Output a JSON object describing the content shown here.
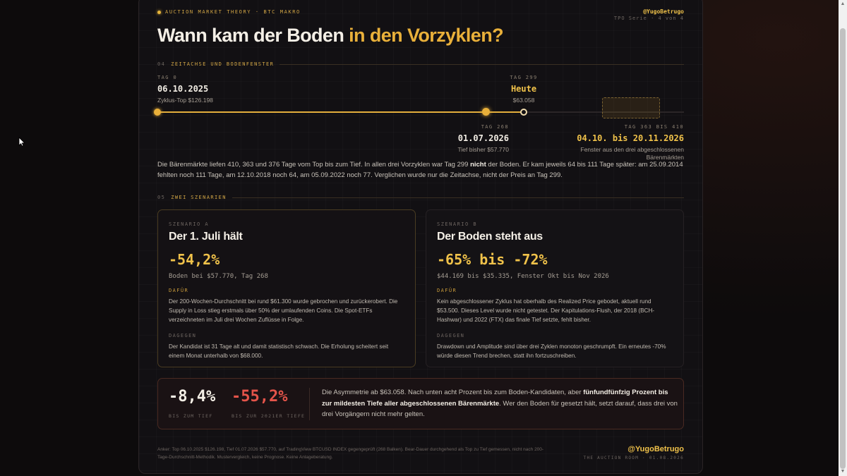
{
  "kicker": "AUCTION MARKET THEORY · BTC MAKRO",
  "handle": "@YugoBetrugo",
  "series": "TPO Serie · 4 von 4",
  "title": {
    "main": "Wann kam der Boden",
    "highlight": "in den Vorzyklen?"
  },
  "section4": {
    "num": "04",
    "label": "ZEITACHSE UND BODENFENSTER"
  },
  "timeline": {
    "start": {
      "tag": "TAG 0",
      "date": "06.10.2025",
      "sub": "Zyklus-Top $126.198"
    },
    "today": {
      "tag": "TAG 299",
      "date": "Heute",
      "sub": "$63.058"
    },
    "candidate": {
      "tag": "TAG 268",
      "date": "01.07.2026",
      "sub": "Tief bisher $57.770"
    },
    "window": {
      "tag": "TAG 363 BIS 410",
      "date": "04.10. bis 20.11.2026",
      "sub": "Fenster aus den drei abgeschlossenen Bärenmärkten"
    },
    "progress_fraction": 0.696
  },
  "para": {
    "p1": "Die Bärenmärkte liefen 410, 363 und 376 Tage vom Top bis zum Tief. In allen drei Vorzyklen war Tag 299 ",
    "bold": "nicht",
    "p2": " der Boden. Er kam jeweils 64 bis 111 Tage später: am 25.09.2014 fehlten noch 111 Tage, am 12.10.2018 noch 64, am 05.09.2022 noch 77. Verglichen wurde nur die Zeitachse, nicht der Preis an Tag 299."
  },
  "section5": {
    "num": "05",
    "label": "ZWEI SZENARIEN"
  },
  "scenario_a": {
    "tag": "SZENARIO A",
    "heading": "Der 1. Juli hält",
    "big": "-54,2%",
    "sub": "Boden bei $57.770, Tag 268",
    "pro_label": "DAFÜR",
    "pro": "Der 200-Wochen-Durchschnitt bei rund $61.300 wurde gebrochen und zurückerobert. Die Supply in Loss stieg erstmals über 50% der umlaufenden Coins. Die Spot-ETFs verzeichneten im Juli drei Wochen Zuflüsse in Folge.",
    "con_label": "DAGEGEN",
    "con": "Der Kandidat ist 31 Tage alt und damit statistisch schwach. Die Erholung scheitert seit einem Monat unterhalb von $68.000."
  },
  "scenario_b": {
    "tag": "SZENARIO B",
    "heading": "Der Boden steht aus",
    "big": "-65% bis -72%",
    "sub": "$44.169 bis $35.335, Fenster Okt bis Nov 2026",
    "pro_label": "DAFÜR",
    "pro": "Kein abgeschlossener Zyklus hat oberhalb des Realized Price gebodet, aktuell rund $53.500. Dieses Level wurde nicht getestet. Der Kapitulations-Flush, der 2018 (BCH-Hashwar) und 2022 (FTX) das finale Tief setzte, fehlt bisher.",
    "con_label": "DAGEGEN",
    "con": "Drawdown und Amplitude sind über drei Zyklen monoton geschrumpft. Ein erneutes -70% würde diesen Trend brechen, statt ihn fortzuschreiben."
  },
  "asymmetry": {
    "n1": "-8,4%",
    "l1": "BIS ZUM TIEF",
    "n2": "-55,2%",
    "l2": "BIS ZUR 2021ER TIEFE",
    "t1": "Die Asymmetrie ab $63.058. Nach unten acht Prozent bis zum Boden-Kandidaten, aber ",
    "bold": "fünfundfünfzig Prozent bis zur mildesten Tiefe aller abgeschlossenen Bärenmärkte",
    "t2": ". Wer den Boden für gesetzt hält, setzt darauf, dass drei von drei Vorgängern nicht mehr gelten."
  },
  "footer": {
    "note": "Anker: Top 06.10.2025 $126.198, Tief 01.07.2026 $57.770, auf TradingView BTCUSD INDEX gegengeprüft (268 Balken). Bear-Dauer durchgehend als Top zu Tief gemessen, nicht nach 200-Tage-Durchschnitt-Methodik. Mustervergleich, keine Prognose. Keine Anlageberatung.",
    "handle": "@YugoBetrugo",
    "sub": "THE AUCTION ROOM · 01.08.2026"
  },
  "colors": {
    "accent": "#e9b03a",
    "negative": "#e4544a",
    "background": "#121013"
  },
  "icons": {
    "cursor": "arrow-cursor-icon",
    "dot": "status-dot-icon"
  }
}
